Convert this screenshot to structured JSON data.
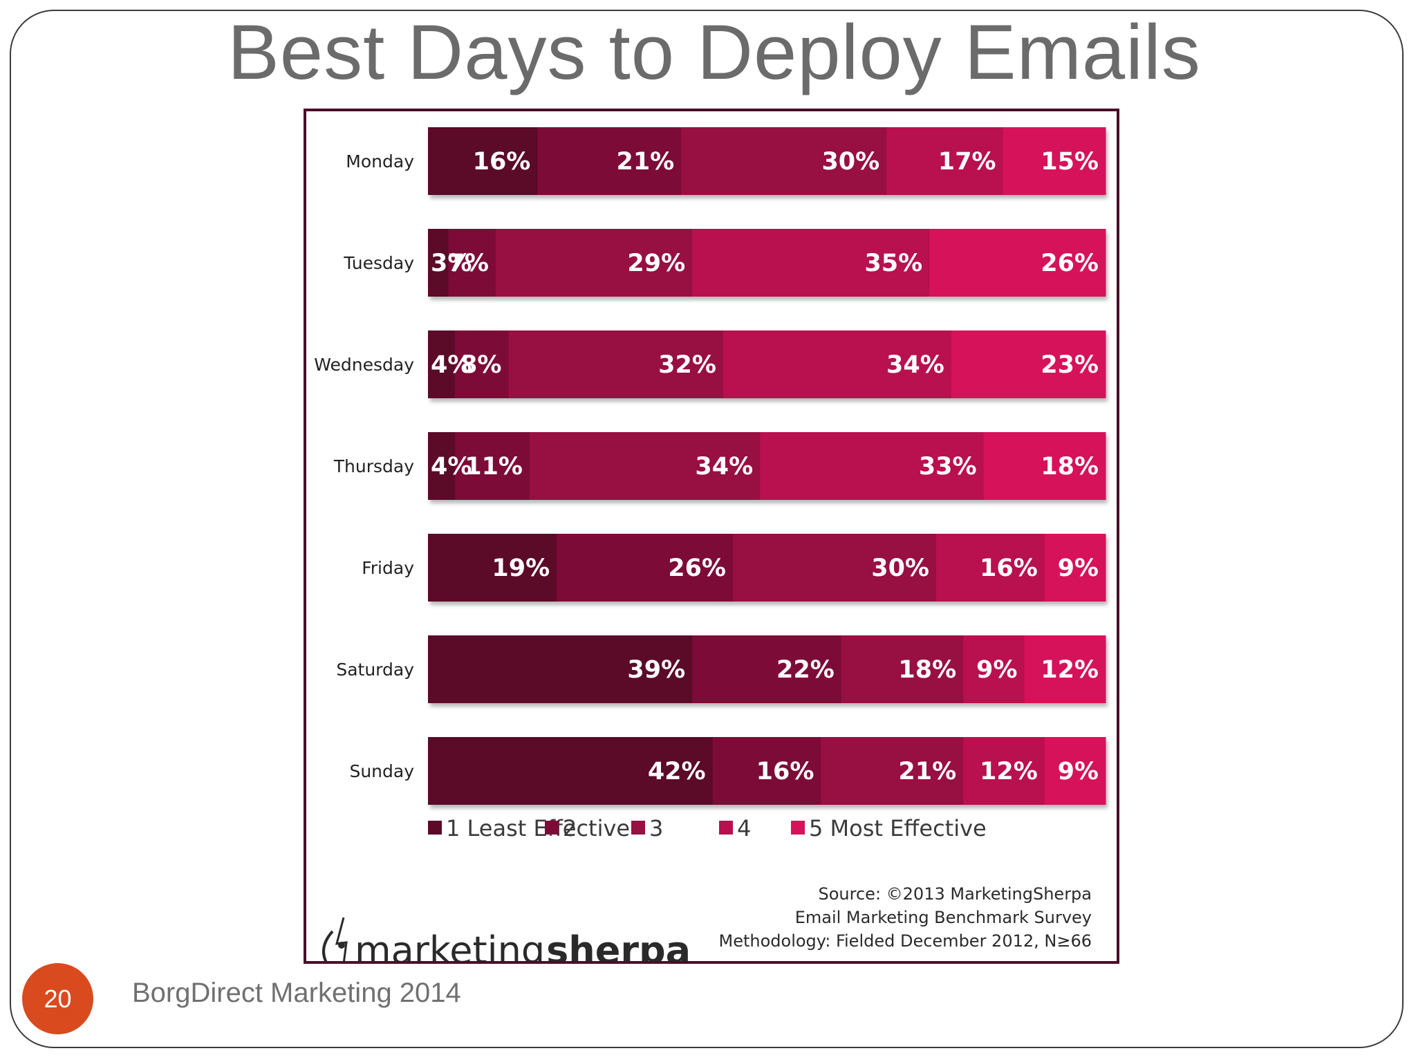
{
  "slide": {
    "title": "Best Days to Deploy Emails",
    "page_number": "20",
    "footer": "BorgDirect Marketing  2014"
  },
  "chart_data": {
    "type": "bar",
    "orientation": "horizontal",
    "stacked": true,
    "categories": [
      "Monday",
      "Tuesday",
      "Wednesday",
      "Thursday",
      "Friday",
      "Saturday",
      "Sunday"
    ],
    "series": [
      {
        "name": "1 Least Effective",
        "color": "#5b0a28",
        "values": [
          16,
          3,
          4,
          4,
          19,
          39,
          42
        ]
      },
      {
        "name": "2",
        "color": "#7d0b37",
        "values": [
          21,
          7,
          8,
          11,
          26,
          22,
          16
        ]
      },
      {
        "name": "3",
        "color": "#980f42",
        "values": [
          30,
          29,
          32,
          34,
          30,
          18,
          21
        ]
      },
      {
        "name": "4",
        "color": "#b9104f",
        "values": [
          17,
          35,
          34,
          33,
          16,
          9,
          12
        ]
      },
      {
        "name": "5 Most Effective",
        "color": "#d6125a",
        "values": [
          15,
          26,
          23,
          18,
          9,
          12,
          9
        ]
      }
    ],
    "value_suffix": "%",
    "legend_position": "bottom",
    "grid": false,
    "source_lines": [
      "Source: ©2013 MarketingSherpa",
      "Email Marketing Benchmark Survey",
      "Methodology: Fielded  December 2012, N≥66"
    ],
    "logo": {
      "light": "marketing",
      "bold": "sherpa"
    }
  }
}
